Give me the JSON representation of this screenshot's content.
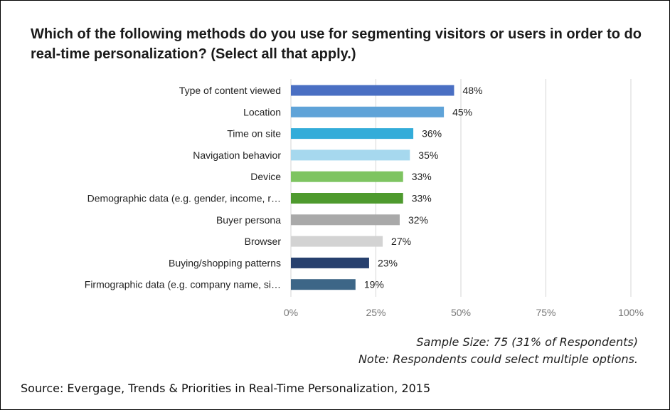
{
  "chart_data": {
    "type": "bar",
    "orientation": "horizontal",
    "title": "Which of the following methods do you use for segmenting visitors or users in order to do real-time personalization? (Select all that apply.)",
    "categories": [
      "Type of content viewed",
      "Location",
      "Time on site",
      "Navigation behavior",
      "Device",
      "Demographic data (e.g. gender, income, r…",
      "Buyer persona",
      "Browser",
      "Buying/shopping patterns",
      "Firmographic data (e.g. company name, si…"
    ],
    "values": [
      48,
      45,
      36,
      35,
      33,
      33,
      32,
      27,
      23,
      19
    ],
    "value_labels": [
      "48%",
      "45%",
      "36%",
      "35%",
      "33%",
      "33%",
      "32%",
      "27%",
      "23%",
      "19%"
    ],
    "bar_colors": [
      "#4a6fc3",
      "#5fa3d8",
      "#33acd9",
      "#a6d8ee",
      "#7ec461",
      "#4e9a2e",
      "#a9a9a9",
      "#d3d3d3",
      "#27406e",
      "#3d6687"
    ],
    "xlim": [
      0,
      100
    ],
    "x_ticks": [
      0,
      25,
      50,
      75,
      100
    ],
    "x_tick_labels": [
      "0%",
      "25%",
      "50%",
      "75%",
      "100%"
    ],
    "grid": true,
    "legend": "none"
  },
  "notes": {
    "sample_size": "Sample Size: 75 (31% of Respondents)",
    "multiple": "Note: Respondents could select multiple options."
  },
  "source": "Source: Evergage, Trends & Priorities in Real-Time Personalization, 2015"
}
